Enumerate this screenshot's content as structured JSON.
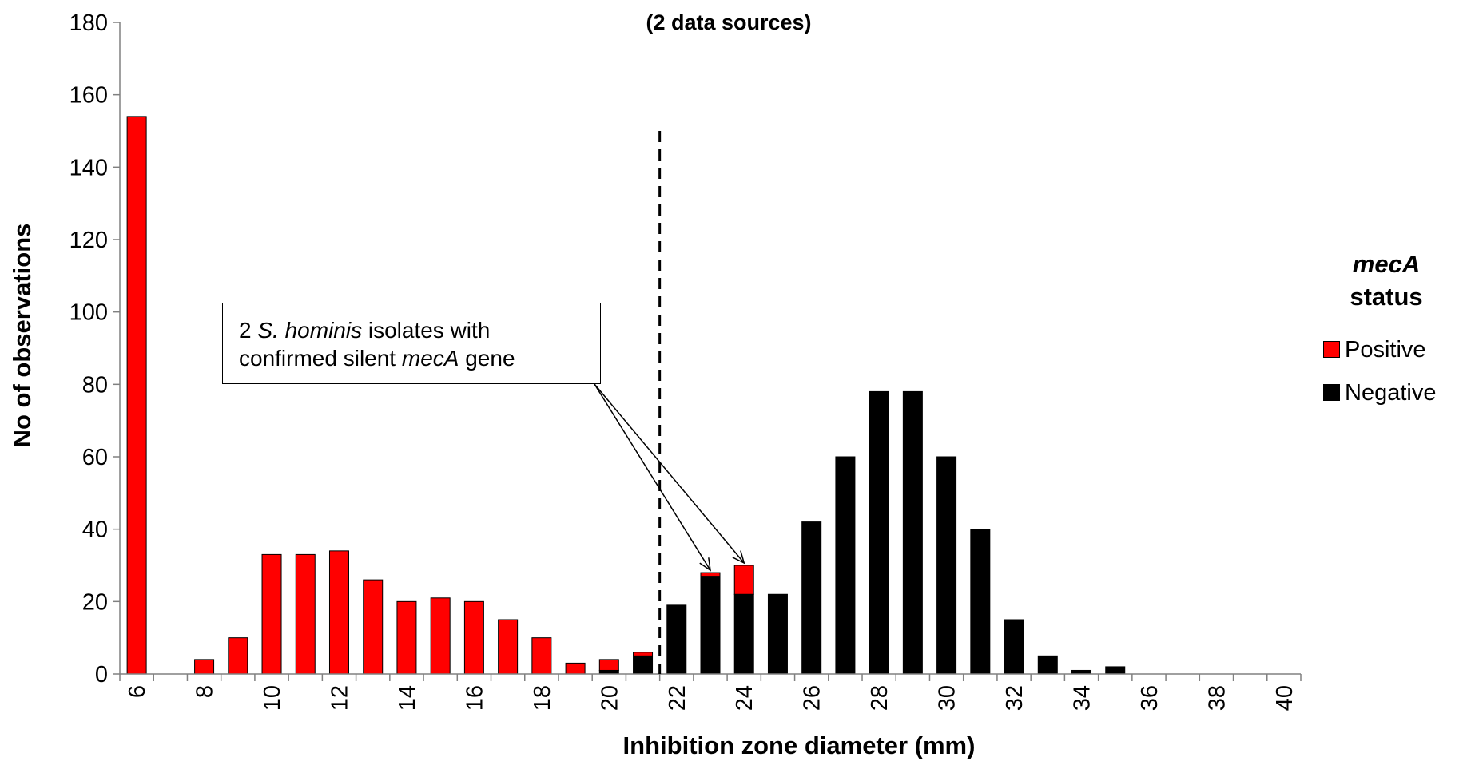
{
  "chart_data": {
    "type": "bar",
    "stacked": true,
    "title": "(2 data sources)",
    "xlabel": "Inhibition zone diameter (mm)",
    "ylabel": "No of observations",
    "ylim": [
      0,
      180
    ],
    "yticks": [
      0,
      20,
      40,
      60,
      80,
      100,
      120,
      140,
      160,
      180
    ],
    "xticks": [
      6,
      8,
      10,
      12,
      14,
      16,
      18,
      20,
      22,
      24,
      26,
      28,
      30,
      32,
      34,
      36,
      38,
      40
    ],
    "grid": false,
    "categories": [
      6,
      7,
      8,
      9,
      10,
      11,
      12,
      13,
      14,
      15,
      16,
      17,
      18,
      19,
      20,
      21,
      22,
      23,
      24,
      25,
      26,
      27,
      28,
      29,
      30,
      31,
      32,
      33,
      34,
      35,
      36,
      37,
      38,
      39,
      40
    ],
    "series": [
      {
        "name": "Negative",
        "color": "#000000",
        "values": [
          0,
          0,
          0,
          0,
          0,
          0,
          0,
          0,
          0,
          0,
          0,
          0,
          0,
          0,
          1,
          5,
          19,
          27,
          22,
          22,
          42,
          60,
          78,
          78,
          60,
          40,
          15,
          5,
          1,
          2,
          0,
          0,
          0,
          0,
          0
        ]
      },
      {
        "name": "Positive",
        "color": "#ff0000",
        "values": [
          154,
          0,
          4,
          10,
          33,
          33,
          34,
          26,
          20,
          21,
          20,
          15,
          10,
          3,
          3,
          1,
          0,
          1,
          8,
          0,
          0,
          0,
          0,
          0,
          0,
          0,
          0,
          0,
          0,
          0,
          0,
          0,
          0,
          0,
          0
        ]
      }
    ],
    "breakpoint_line": {
      "x": 21.5,
      "y_top": 150,
      "style": "dashed"
    },
    "legend": {
      "title_italic": "mecA",
      "title_rest": "status",
      "placement": "right",
      "items": [
        {
          "label": "Positive",
          "color": "#ff0000"
        },
        {
          "label": "Negative",
          "color": "#000000"
        }
      ]
    },
    "annotation": {
      "prefix": "2 ",
      "species": "S. hominis",
      "line1_rest": " isolates with",
      "line2_start": "confirmed silent ",
      "gene": "mecA",
      "line2_end": " gene",
      "arrow_targets": [
        {
          "x": 23,
          "y": 28
        },
        {
          "x": 24,
          "y": 30
        }
      ]
    }
  }
}
